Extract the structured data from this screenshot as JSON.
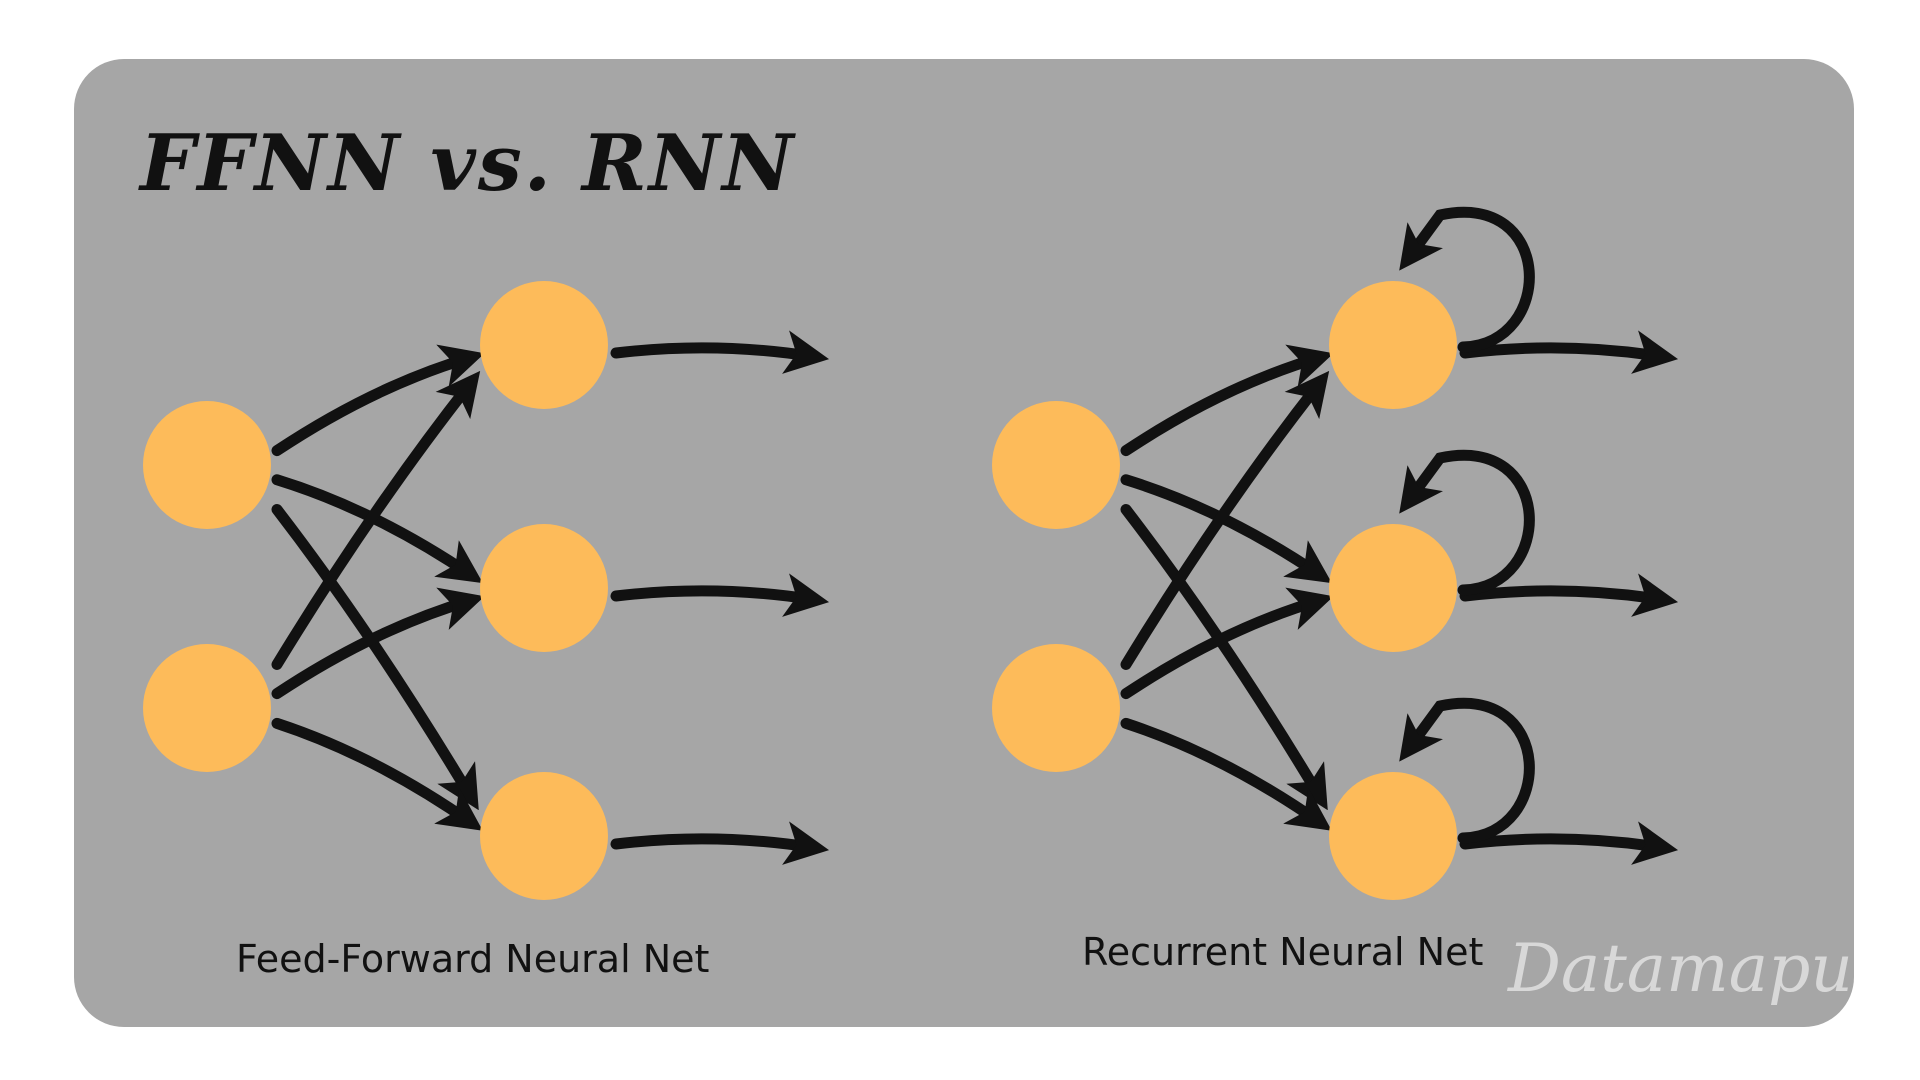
{
  "title": "FFNN vs. RNN",
  "captions": {
    "feed_forward": "Feed-Forward Neural Net",
    "recurrent": "Recurrent Neural Net"
  },
  "watermark": "Datamapu",
  "colors": {
    "panel": "#a6a6a6",
    "node": "#fdbb5a",
    "arrow": "#111111",
    "watermark": "#d8d8d8"
  },
  "networks": [
    {
      "name": "feed-forward",
      "inputs": 2,
      "hidden": 3,
      "recurrent_loops": false
    },
    {
      "name": "recurrent",
      "inputs": 2,
      "hidden": 3,
      "recurrent_loops": true
    }
  ]
}
